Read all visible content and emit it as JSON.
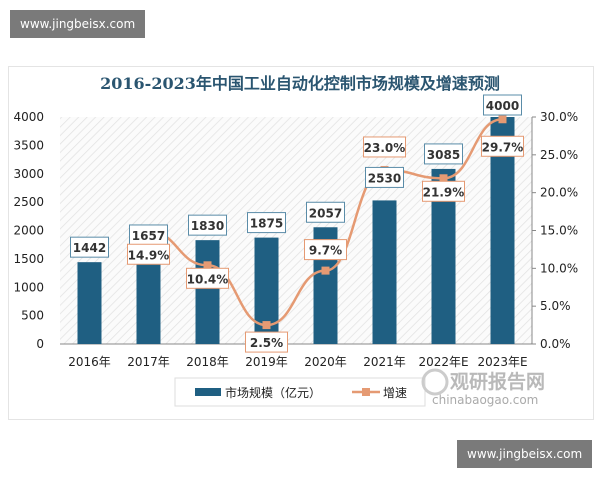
{
  "watermarks": [
    "www.jingbeisx.com",
    "www.jingbeisx.com"
  ],
  "logo": {
    "text": "观研报告网",
    "url_text": "chinabaogao.com"
  },
  "chart_data": {
    "type": "bar+line",
    "title": "2016-2023年中国工业自动化控制市场规模及增速预测",
    "categories": [
      "2016年",
      "2017年",
      "2018年",
      "2019年",
      "2020年",
      "2021年",
      "2022年E",
      "2023年E"
    ],
    "series": [
      {
        "name": "市场规模（亿元）",
        "type": "bar",
        "axis": "left",
        "values": [
          1442,
          1657,
          1830,
          1875,
          2057,
          2530,
          3085,
          4000
        ],
        "labels": [
          "1442",
          "1657",
          "1830",
          "1875",
          "2057",
          "2530",
          "3085",
          "4000"
        ],
        "color": "#1f5f82"
      },
      {
        "name": "增速",
        "type": "line",
        "axis": "right",
        "values": [
          null,
          14.9,
          10.4,
          2.5,
          9.7,
          23.0,
          21.9,
          29.7
        ],
        "labels": [
          "",
          "14.9%",
          "10.4%",
          "2.5%",
          "9.7%",
          "23.0%",
          "21.9%",
          "29.7%"
        ],
        "color": "#e59a73"
      }
    ],
    "y_left": {
      "range": [
        0,
        4000
      ],
      "ticks": [
        "0",
        "500",
        "1000",
        "1500",
        "2000",
        "2500",
        "3000",
        "3500",
        "4000"
      ]
    },
    "y_right": {
      "range": [
        0,
        30
      ],
      "ticks": [
        "0.0%",
        "5.0%",
        "10.0%",
        "15.0%",
        "20.0%",
        "25.0%",
        "30.0%"
      ]
    },
    "grid": false,
    "background": "hatched",
    "legend": "bottom"
  }
}
